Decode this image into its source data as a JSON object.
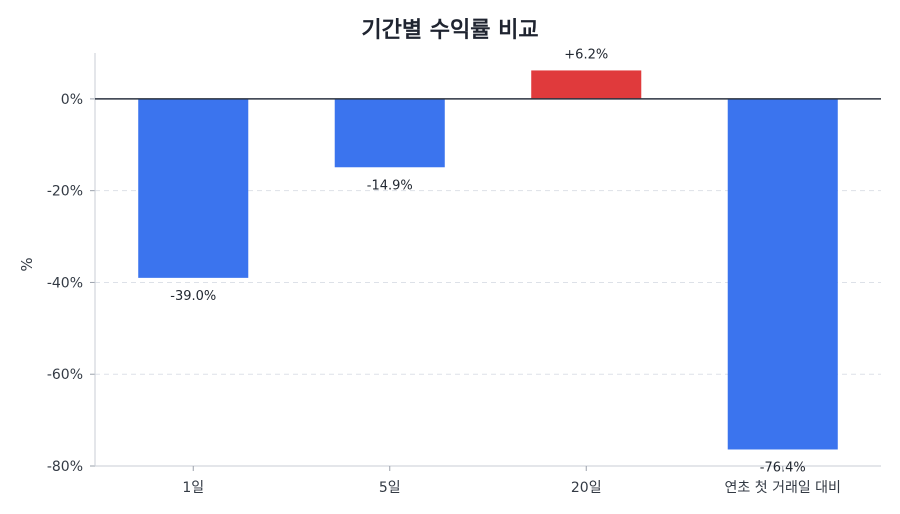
{
  "chart_data": {
    "type": "bar",
    "title": "기간별 수익률 비교",
    "xlabel": "",
    "ylabel": "%",
    "categories": [
      "1일",
      "5일",
      "20일",
      "연초 첫 거래일 대비"
    ],
    "values": [
      -39.0,
      -14.9,
      6.2,
      -76.4
    ],
    "value_labels": [
      "-39.0%",
      "-14.9%",
      "+6.2%",
      "-76.4%"
    ],
    "ylim": [
      -80,
      10
    ],
    "yticks": [
      0,
      -20,
      -40,
      -60,
      -80
    ],
    "ytick_labels": [
      "0%",
      "-20%",
      "-40%",
      "-60%",
      "-80%"
    ],
    "grid": true,
    "colors": {
      "negative": "#3b74ee",
      "positive": "#e03a3c",
      "zero_line": "#2b3340",
      "grid": "#dde1e8"
    }
  }
}
